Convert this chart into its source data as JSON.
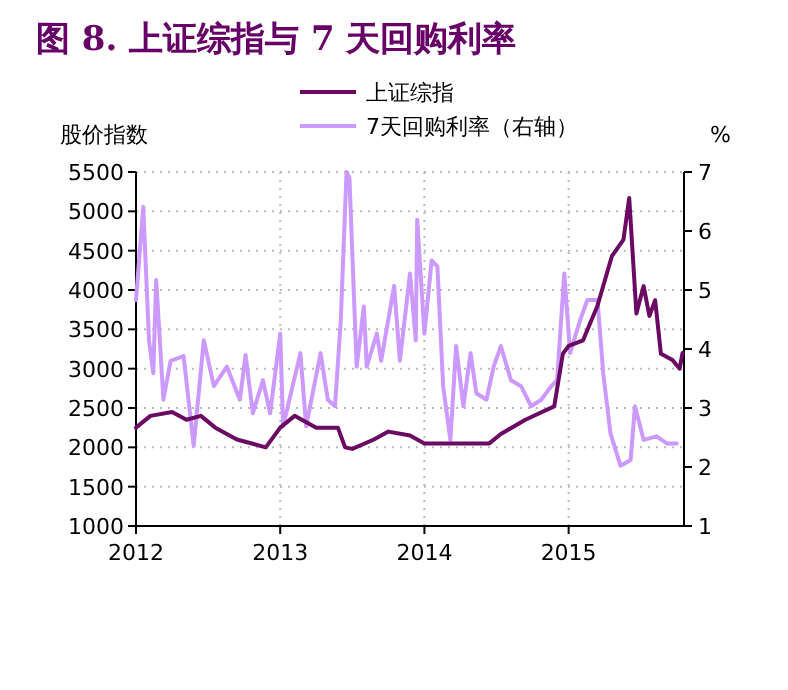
{
  "chart_data": {
    "type": "line",
    "title": "图 8. 上证综指与 7 天回购利率",
    "ylabel": "股价指数",
    "y2label": "%",
    "xlim": [
      2012,
      2015.8
    ],
    "xticks": [
      2012,
      2013,
      2014,
      2015
    ],
    "ylim": [
      1000,
      5500
    ],
    "yticks": [
      1000,
      1500,
      2000,
      2500,
      3000,
      3500,
      4000,
      4500,
      5000,
      5500
    ],
    "y2lim": [
      1,
      7
    ],
    "y2ticks": [
      1,
      2,
      3,
      4,
      5,
      6,
      7
    ],
    "grid": true,
    "legend": "top",
    "marker": "none",
    "line_style": "solid",
    "series": [
      {
        "name": "上证综指",
        "color": "#6a0a62",
        "x": [
          2012.0,
          2012.1,
          2012.25,
          2012.35,
          2012.45,
          2012.55,
          2012.7,
          2012.9,
          2013.0,
          2013.1,
          2013.25,
          2013.4,
          2013.45,
          2013.5,
          2013.65,
          2013.75,
          2013.9,
          2014.0,
          2014.2,
          2014.45,
          2014.53,
          2014.7,
          2014.9,
          2014.96,
          2015.0,
          2015.1,
          2015.2,
          2015.3,
          2015.38,
          2015.42,
          2015.47,
          2015.52,
          2015.56,
          2015.6,
          2015.64,
          2015.72,
          2015.77,
          2015.79
        ],
        "values": [
          2250,
          2400,
          2450,
          2350,
          2400,
          2250,
          2100,
          2000,
          2250,
          2400,
          2250,
          2250,
          2000,
          1980,
          2100,
          2200,
          2150,
          2050,
          2050,
          2050,
          2170,
          2350,
          2520,
          3190,
          3290,
          3360,
          3800,
          4430,
          4640,
          5170,
          3700,
          4050,
          3670,
          3870,
          3190,
          3110,
          3000,
          3200
        ]
      },
      {
        "name": "7天回购利率（右轴）",
        "color": "#cc99ff",
        "axis": "y2",
        "x": [
          2012.0,
          2012.05,
          2012.09,
          2012.12,
          2012.14,
          2012.19,
          2012.24,
          2012.33,
          2012.4,
          2012.47,
          2012.54,
          2012.63,
          2012.72,
          2012.76,
          2012.81,
          2012.88,
          2012.93,
          2013.0,
          2013.02,
          2013.14,
          2013.18,
          2013.28,
          2013.33,
          2013.38,
          2013.42,
          2013.46,
          2013.48,
          2013.53,
          2013.58,
          2013.6,
          2013.67,
          2013.7,
          2013.79,
          2013.83,
          2013.9,
          2013.94,
          2013.95,
          2014.0,
          2014.05,
          2014.09,
          2014.13,
          2014.18,
          2014.22,
          2014.27,
          2014.32,
          2014.36,
          2014.43,
          2014.48,
          2014.53,
          2014.6,
          2014.67,
          2014.74,
          2014.81,
          2014.88,
          2014.92,
          2014.97,
          2015.01,
          2015.08,
          2015.13,
          2015.2,
          2015.24,
          2015.29,
          2015.36,
          2015.43,
          2015.46,
          2015.52,
          2015.61,
          2015.68,
          2015.75
        ],
        "values": [
          4.83,
          6.41,
          4.15,
          3.59,
          5.17,
          3.14,
          3.8,
          3.88,
          2.36,
          4.15,
          3.37,
          3.7,
          3.14,
          3.9,
          2.91,
          3.47,
          2.91,
          4.26,
          2.69,
          3.93,
          2.69,
          3.93,
          3.14,
          3.03,
          4.49,
          7.0,
          6.9,
          3.7,
          4.72,
          3.7,
          4.26,
          3.8,
          5.07,
          3.8,
          5.28,
          4.15,
          6.19,
          4.26,
          5.5,
          5.4,
          3.37,
          2.46,
          4.05,
          3.03,
          3.93,
          3.25,
          3.14,
          3.7,
          4.05,
          3.47,
          3.37,
          3.03,
          3.14,
          3.37,
          3.47,
          5.28,
          3.93,
          4.49,
          4.83,
          4.83,
          3.59,
          2.57,
          2.02,
          2.12,
          3.03,
          2.46,
          2.52,
          2.4,
          2.4
        ]
      }
    ]
  }
}
